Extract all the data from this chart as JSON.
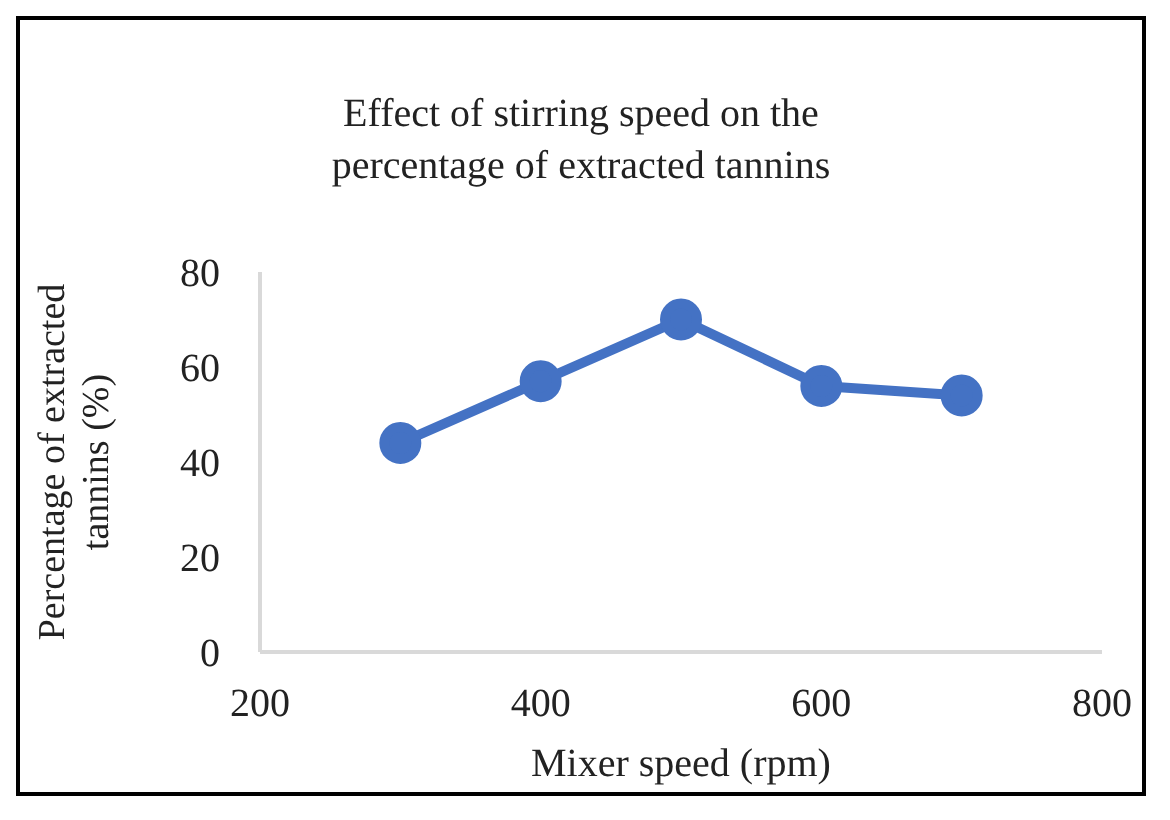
{
  "chart_data": {
    "type": "line",
    "title": "Effect of stirring speed on the percentage of extracted tannins",
    "xlabel": "Mixer speed (rpm)",
    "ylabel": "Percentage of extracted tannins (%)",
    "x": [
      300,
      400,
      500,
      600,
      700
    ],
    "series": [
      {
        "color": "#4472c4",
        "values": [
          44,
          57,
          70,
          56,
          54
        ]
      }
    ],
    "xlim": [
      200,
      800
    ],
    "xticks": [
      200,
      400,
      600,
      800
    ],
    "ylim": [
      0,
      80
    ],
    "yticks": [
      0,
      20,
      40,
      60,
      80
    ],
    "grid": false,
    "legend": false,
    "marker": "circle",
    "line_style": "solid"
  }
}
